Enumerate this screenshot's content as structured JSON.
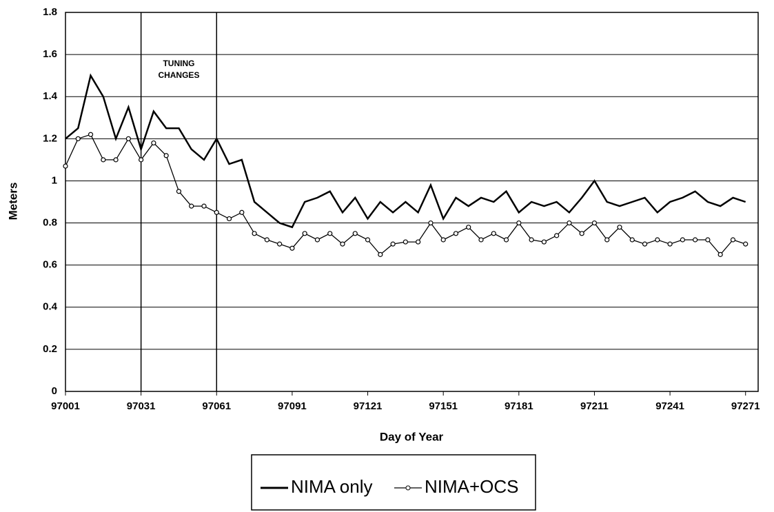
{
  "chart_data": {
    "type": "line",
    "x_label": "Day of Year",
    "y_label": "Meters",
    "annotation": [
      "TUNING",
      "CHANGES"
    ],
    "vlines": [
      97031,
      97061
    ],
    "x": [
      97001,
      97006,
      97011,
      97016,
      97021,
      97026,
      97031,
      97036,
      97041,
      97046,
      97051,
      97056,
      97061,
      97066,
      97071,
      97076,
      97081,
      97086,
      97091,
      97096,
      97101,
      97106,
      97111,
      97116,
      97121,
      97126,
      97131,
      97136,
      97141,
      97146,
      97151,
      97156,
      97161,
      97166,
      97171,
      97176,
      97181,
      97186,
      97191,
      97196,
      97201,
      97206,
      97211,
      97216,
      97221,
      97226,
      97231,
      97236,
      97241,
      97246,
      97251,
      97256,
      97261,
      97266,
      97271
    ],
    "series": [
      {
        "name": "NIMA only",
        "color": "#000000",
        "marker": false,
        "values": [
          1.2,
          1.25,
          1.5,
          1.4,
          1.2,
          1.35,
          1.15,
          1.33,
          1.25,
          1.25,
          1.15,
          1.1,
          1.2,
          1.08,
          1.1,
          0.9,
          0.85,
          0.8,
          0.78,
          0.9,
          0.92,
          0.95,
          0.85,
          0.92,
          0.82,
          0.9,
          0.85,
          0.9,
          0.85,
          0.98,
          0.82,
          0.92,
          0.88,
          0.92,
          0.9,
          0.95,
          0.85,
          0.9,
          0.88,
          0.9,
          0.85,
          0.92,
          1.0,
          0.9,
          0.88,
          0.9,
          0.92,
          0.85,
          0.9,
          0.92,
          0.95,
          0.9,
          0.88,
          0.92,
          0.9
        ]
      },
      {
        "name": "NIMA+OCS",
        "color": "#000000",
        "marker": true,
        "values": [
          1.07,
          1.2,
          1.22,
          1.1,
          1.1,
          1.2,
          1.1,
          1.18,
          1.12,
          0.95,
          0.88,
          0.88,
          0.85,
          0.82,
          0.85,
          0.75,
          0.72,
          0.7,
          0.68,
          0.75,
          0.72,
          0.75,
          0.7,
          0.75,
          0.72,
          0.65,
          0.7,
          0.71,
          0.71,
          0.8,
          0.72,
          0.75,
          0.78,
          0.72,
          0.75,
          0.72,
          0.8,
          0.72,
          0.71,
          0.74,
          0.8,
          0.75,
          0.8,
          0.72,
          0.78,
          0.72,
          0.7,
          0.72,
          0.7,
          0.72,
          0.72,
          0.72,
          0.65,
          0.72,
          0.7
        ]
      }
    ],
    "xlim": [
      97001,
      97276
    ],
    "xticks": [
      97001,
      97031,
      97061,
      97091,
      97121,
      97151,
      97181,
      97211,
      97241,
      97271
    ],
    "ylim": [
      0,
      1.8
    ],
    "yticks": [
      0,
      0.2,
      0.4,
      0.6,
      0.8,
      1,
      1.2,
      1.4,
      1.6,
      1.8
    ],
    "grid": true
  }
}
